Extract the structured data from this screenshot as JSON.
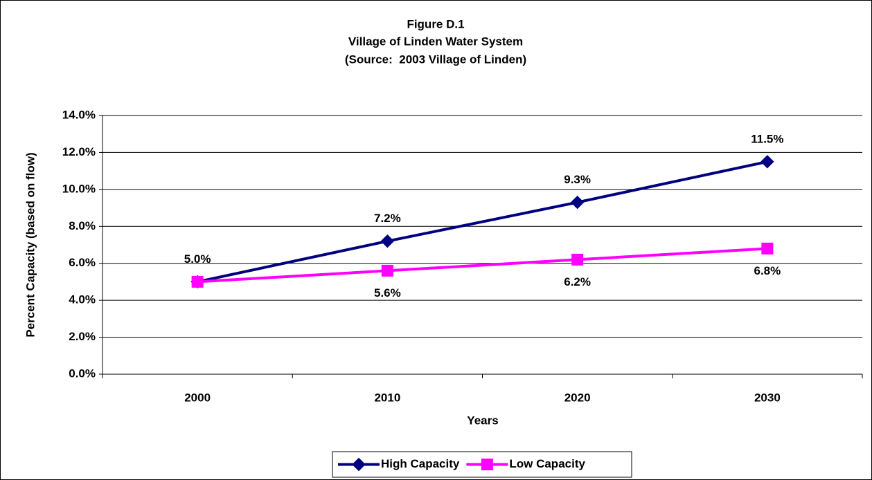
{
  "chart_data": {
    "type": "line",
    "title": [
      "Figure D.1",
      "Village of Linden Water System",
      "(Source:  2003 Village of Linden)"
    ],
    "x_label": "Years",
    "y_label": "Percent Capacity (based on flow)",
    "categories": [
      "2000",
      "2010",
      "2020",
      "2030"
    ],
    "series": [
      {
        "name": "High Capacity",
        "color": "#000080",
        "marker": "diamond",
        "label_position": "above",
        "values": [
          5.0,
          7.2,
          9.3,
          11.5
        ],
        "value_labels": [
          "5.0%",
          "7.2%",
          "9.3%",
          "11.5%"
        ]
      },
      {
        "name": "Low Capacity",
        "color": "#ff00ff",
        "marker": "square",
        "label_position": "below",
        "values": [
          5.0,
          5.6,
          6.2,
          6.8
        ],
        "value_labels": [
          null,
          "5.6%",
          "6.2%",
          "6.8%"
        ]
      }
    ],
    "ylim": [
      0,
      14
    ],
    "yticks": [
      {
        "value": 0,
        "label": "0.0%"
      },
      {
        "value": 2,
        "label": "2.0%"
      },
      {
        "value": 4,
        "label": "4.0%"
      },
      {
        "value": 6,
        "label": "6.0%"
      },
      {
        "value": 8,
        "label": "8.0%"
      },
      {
        "value": 10,
        "label": "10.0%"
      },
      {
        "value": 12,
        "label": "12.0%"
      },
      {
        "value": 14,
        "label": "14.0%"
      }
    ],
    "grid": true,
    "legend": "bottom"
  }
}
